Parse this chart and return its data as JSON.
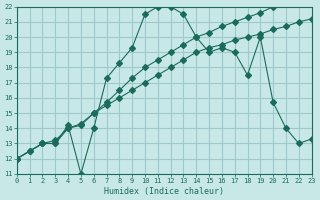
{
  "background_color": "#c8e8e8",
  "grid_color": "#a0c8c8",
  "line_color": "#1a6b5a",
  "xlabel": "Humidex (Indice chaleur)",
  "xlim": [
    0,
    23
  ],
  "ylim": [
    11,
    22
  ],
  "yticks": [
    11,
    12,
    13,
    14,
    15,
    16,
    17,
    18,
    19,
    20,
    21,
    22
  ],
  "xticks": [
    0,
    1,
    2,
    3,
    4,
    5,
    6,
    7,
    8,
    9,
    10,
    11,
    12,
    13,
    14,
    15,
    16,
    17,
    18,
    19,
    20,
    21,
    22,
    23
  ],
  "line1_x": [
    0,
    1,
    2,
    3,
    4,
    5,
    6,
    7,
    8,
    9,
    10,
    11,
    12,
    13,
    14,
    15,
    16,
    17,
    18,
    19,
    20,
    21,
    22,
    23
  ],
  "line1_y": [
    12.0,
    12.5,
    13.0,
    13.0,
    14.0,
    14.2,
    15.0,
    15.5,
    16.0,
    16.5,
    17.0,
    17.5,
    18.0,
    18.5,
    19.0,
    19.3,
    19.5,
    19.8,
    20.0,
    20.2,
    20.5,
    20.7,
    21.0,
    21.2
  ],
  "line2_x": [
    0,
    1,
    2,
    3,
    4,
    5,
    6,
    7,
    8,
    9,
    10,
    11,
    12,
    13,
    14,
    15,
    16,
    17,
    18,
    19,
    20,
    21,
    22,
    23
  ],
  "line2_y": [
    12.0,
    12.5,
    13.0,
    13.2,
    14.0,
    14.3,
    15.0,
    15.7,
    16.5,
    17.3,
    18.0,
    18.5,
    19.0,
    19.5,
    20.0,
    20.3,
    20.7,
    21.0,
    21.3,
    21.6,
    22.0,
    22.2,
    22.5,
    22.7
  ],
  "line3_x": [
    0,
    2,
    3,
    4,
    5,
    6,
    7,
    8,
    9,
    10,
    11,
    12,
    13,
    14,
    15,
    16,
    17,
    18,
    19,
    20,
    21,
    22,
    23
  ],
  "line3_y": [
    12.0,
    13.0,
    13.0,
    14.2,
    11.0,
    14.0,
    17.3,
    18.3,
    19.3,
    21.5,
    22.0,
    22.0,
    21.5,
    20.0,
    19.0,
    19.3,
    19.0,
    17.5,
    20.0,
    15.7,
    14.0,
    13.0,
    13.3
  ],
  "marker": "D",
  "markersize": 3
}
